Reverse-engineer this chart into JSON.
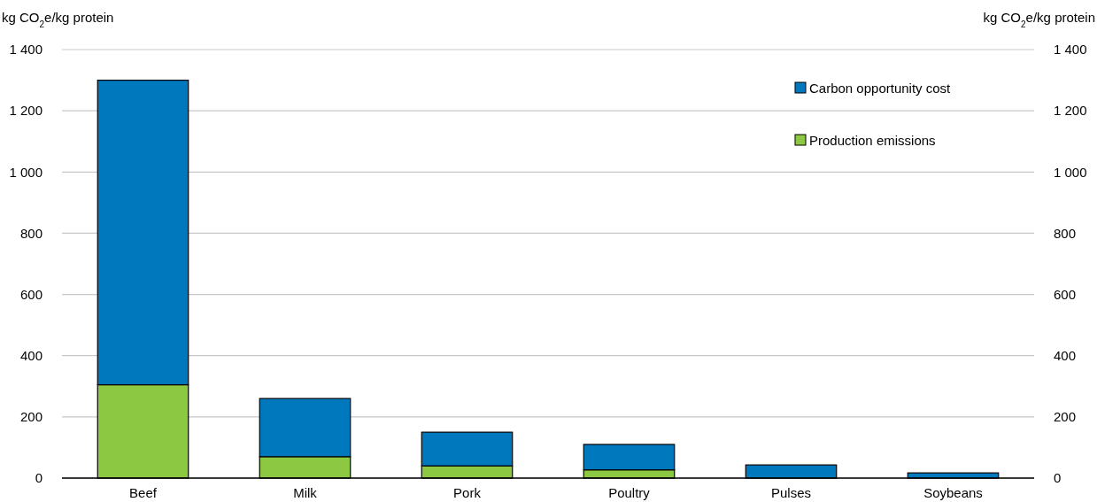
{
  "chart_data": {
    "type": "bar",
    "stacked": true,
    "ylabel": "kg CO$_{2}$e/kg protein",
    "y2label": "kg CO$_{2}$e/kg protein",
    "categories": [
      "Beef",
      "Milk",
      "Pork",
      "Poultry",
      "Pulses",
      "Soybeans"
    ],
    "series": [
      {
        "name": "Production emissions",
        "color": "#8cc841",
        "values": [
          305,
          70,
          40,
          27,
          0,
          0
        ]
      },
      {
        "name": "Carbon opportunity cost",
        "color": "#0078be",
        "values": [
          995,
          190,
          110,
          83,
          43,
          17
        ]
      }
    ],
    "ylim": [
      0,
      1400
    ],
    "yticks": [
      0,
      200,
      400,
      600,
      800,
      {
        "value": 1000,
        "label": "1 000"
      },
      {
        "value": 1200,
        "label": "1 200"
      },
      {
        "value": 1400,
        "label": "1 400"
      }
    ],
    "y2lim": [
      0,
      1400
    ],
    "y2ticks": [
      0,
      200,
      400,
      600,
      800,
      {
        "value": 1000,
        "label": "1 000"
      },
      {
        "value": 1200,
        "label": "1 200"
      },
      {
        "value": 1400,
        "label": "1 400"
      }
    ],
    "grid": "y",
    "legend": "top right"
  }
}
